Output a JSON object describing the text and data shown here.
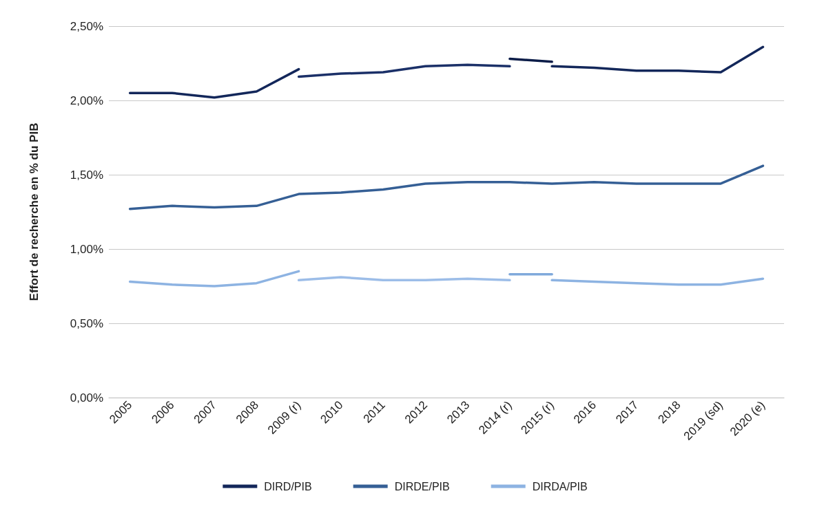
{
  "chart_data": {
    "type": "line",
    "ylabel": "Effort de recherche en % du PIB",
    "categories": [
      "2005",
      "2006",
      "2007",
      "2008",
      "2009 (r)",
      "2010",
      "2011",
      "2012",
      "2013",
      "2014 (r)",
      "2015 (r)",
      "2016",
      "2017",
      "2018",
      "2019 (sd)",
      "2020 (e)"
    ],
    "series": [
      {
        "name": "DIRD/PIB",
        "color": "#13275a",
        "values": [
          2.05,
          2.05,
          2.02,
          2.06,
          2.21,
          null,
          null,
          null,
          null,
          null,
          2.23,
          2.22,
          2.2,
          2.2,
          2.19,
          2.36
        ]
      },
      {
        "color": "#1b3068",
        "values": [
          null,
          null,
          null,
          null,
          2.16,
          2.18,
          2.19,
          2.23,
          2.24,
          2.23,
          null,
          null,
          null,
          null,
          null,
          null
        ]
      },
      {
        "color": "#0b1c48",
        "values": [
          null,
          null,
          null,
          null,
          null,
          null,
          null,
          null,
          null,
          2.28,
          2.26,
          null,
          null,
          null,
          null,
          null
        ]
      },
      {
        "name": "DIRDE/PIB",
        "color": "#355f95",
        "values": [
          1.27,
          1.29,
          1.28,
          1.29,
          1.37,
          1.38,
          1.4,
          1.44,
          1.45,
          1.45,
          1.44,
          1.45,
          1.44,
          1.44,
          1.44,
          1.56
        ]
      },
      {
        "name": "DIRDA/PIB",
        "color": "#8db3e2",
        "values": [
          0.78,
          0.76,
          0.75,
          0.77,
          0.85,
          null,
          null,
          null,
          null,
          null,
          0.79,
          0.78,
          0.77,
          0.76,
          0.76,
          0.8
        ]
      },
      {
        "color": "#9cbde8",
        "values": [
          null,
          null,
          null,
          null,
          0.79,
          0.81,
          0.79,
          0.79,
          0.8,
          0.79,
          null,
          null,
          null,
          null,
          null,
          null
        ]
      },
      {
        "color": "#80a9db",
        "values": [
          null,
          null,
          null,
          null,
          null,
          null,
          null,
          null,
          null,
          0.83,
          0.83,
          null,
          null,
          null,
          null,
          null
        ]
      }
    ],
    "ylim": [
      0,
      2.5
    ],
    "yticks": [
      {
        "value": 0,
        "label": "0,00%"
      },
      {
        "value": 0.5,
        "label": "0,50%"
      },
      {
        "value": 1,
        "label": "1,00%"
      },
      {
        "value": 1.5,
        "label": "1,50%"
      },
      {
        "value": 2,
        "label": "2,00%"
      },
      {
        "value": 2.5,
        "label": "2,50%"
      }
    ],
    "grid": "y",
    "legend": "bottom",
    "marker": "none",
    "line_style": "solid"
  }
}
